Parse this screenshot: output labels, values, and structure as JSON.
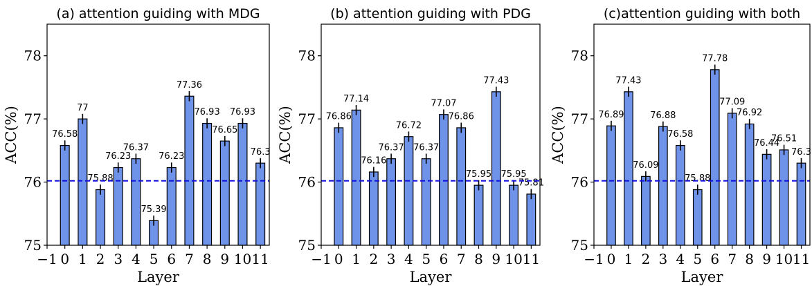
{
  "chart_data": [
    {
      "type": "bar",
      "title": "(a) attention guiding with MDG",
      "xlabel": "Layer",
      "ylabel": "ACC(%)",
      "categories": [
        0,
        1,
        2,
        3,
        4,
        5,
        6,
        7,
        8,
        9,
        10,
        11
      ],
      "values": [
        76.58,
        77,
        75.88,
        76.23,
        76.37,
        75.39,
        76.23,
        77.36,
        76.93,
        76.65,
        76.93,
        76.3
      ],
      "value_labels": [
        "76.58",
        "77",
        "75.88",
        "76.23",
        "76.37",
        "75.39",
        "76.23",
        "77.36",
        "76.93",
        "76.65",
        "76.93",
        "76.3"
      ],
      "error": [
        0.08,
        0.08,
        0.08,
        0.08,
        0.08,
        0.08,
        0.08,
        0.08,
        0.08,
        0.08,
        0.08,
        0.08
      ],
      "baseline": 76.02,
      "xlim": [
        -1,
        11.5
      ],
      "ylim": [
        75,
        78.5
      ],
      "xticks": [
        -1,
        0,
        1,
        2,
        3,
        4,
        5,
        6,
        7,
        8,
        9,
        10,
        11
      ],
      "xtick_labels": [
        "−1",
        "0",
        "1",
        "2",
        "3",
        "4",
        "5",
        "6",
        "7",
        "8",
        "9",
        "10",
        "11"
      ],
      "yticks": [
        75,
        76,
        77,
        78
      ],
      "ytick_labels": [
        "75",
        "76",
        "77",
        "78"
      ]
    },
    {
      "type": "bar",
      "title": "(b) attention guiding with PDG",
      "xlabel": "Layer",
      "ylabel": "ACC(%)",
      "categories": [
        0,
        1,
        2,
        3,
        4,
        5,
        6,
        7,
        8,
        9,
        10,
        11
      ],
      "values": [
        76.86,
        77.14,
        76.16,
        76.37,
        76.72,
        76.37,
        77.07,
        76.86,
        75.95,
        77.43,
        75.95,
        75.81
      ],
      "value_labels": [
        "76.86",
        "77.14",
        "76.16",
        "76.37",
        "76.72",
        "76.37",
        "77.07",
        "76.86",
        "75.95",
        "77.43",
        "75.95",
        "75.81"
      ],
      "error": [
        0.08,
        0.08,
        0.08,
        0.08,
        0.08,
        0.08,
        0.08,
        0.08,
        0.08,
        0.08,
        0.08,
        0.08
      ],
      "baseline": 76.02,
      "xlim": [
        -1,
        11.5
      ],
      "ylim": [
        75,
        78.5
      ],
      "xticks": [
        -1,
        0,
        1,
        2,
        3,
        4,
        5,
        6,
        7,
        8,
        9,
        10,
        11
      ],
      "xtick_labels": [
        "−1",
        "0",
        "1",
        "2",
        "3",
        "4",
        "5",
        "6",
        "7",
        "8",
        "9",
        "10",
        "11"
      ],
      "yticks": [
        75,
        76,
        77,
        78
      ],
      "ytick_labels": [
        "75",
        "76",
        "77",
        "78"
      ]
    },
    {
      "type": "bar",
      "title": "(c)attention guiding with both",
      "xlabel": "Layer",
      "ylabel": "ACC(%)",
      "categories": [
        0,
        1,
        2,
        3,
        4,
        5,
        6,
        7,
        8,
        9,
        10,
        11
      ],
      "values": [
        76.89,
        77.43,
        76.09,
        76.88,
        76.58,
        75.88,
        77.78,
        77.09,
        76.92,
        76.44,
        76.51,
        76.3
      ],
      "value_labels": [
        "76.89",
        "77.43",
        "76.09",
        "76.88",
        "76.58",
        "75.88",
        "77.78",
        "77.09",
        "76.92",
        "76.44",
        "76.51",
        "76.3"
      ],
      "error": [
        0.08,
        0.08,
        0.08,
        0.08,
        0.08,
        0.08,
        0.08,
        0.08,
        0.08,
        0.08,
        0.08,
        0.08
      ],
      "baseline": 76.02,
      "xlim": [
        -1,
        11.5
      ],
      "ylim": [
        75,
        78.5
      ],
      "xticks": [
        -1,
        0,
        1,
        2,
        3,
        4,
        5,
        6,
        7,
        8,
        9,
        10,
        11
      ],
      "xtick_labels": [
        "−1",
        "0",
        "1",
        "2",
        "3",
        "4",
        "5",
        "6",
        "7",
        "8",
        "9",
        "10",
        "11"
      ],
      "yticks": [
        75,
        76,
        77,
        78
      ],
      "ytick_labels": [
        "75",
        "76",
        "77",
        "78"
      ]
    }
  ]
}
